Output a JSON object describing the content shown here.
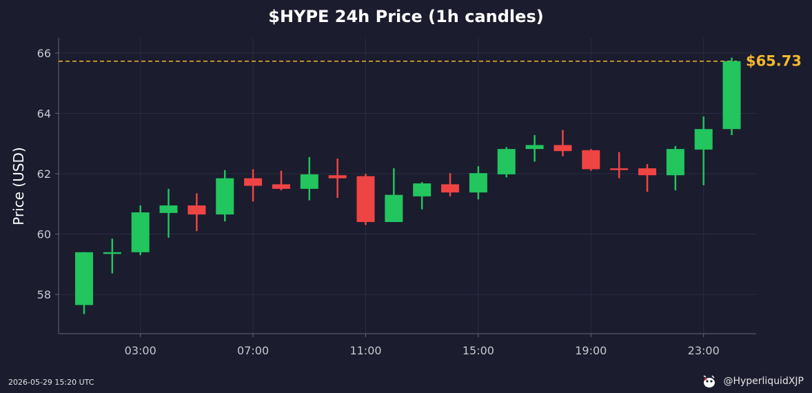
{
  "chart_data": {
    "type": "candlestick",
    "title": "$HYPE 24h Price (1h candles)",
    "ylabel": "Price (USD)",
    "xlabel": "",
    "ylim": [
      56.7,
      66.5
    ],
    "yticks": [
      58,
      60,
      62,
      64,
      66
    ],
    "xticks": [
      "03:00",
      "07:00",
      "11:00",
      "15:00",
      "19:00",
      "23:00"
    ],
    "x": [
      "01:00",
      "02:00",
      "03:00",
      "04:00",
      "05:00",
      "06:00",
      "07:00",
      "08:00",
      "09:00",
      "10:00",
      "11:00",
      "12:00",
      "13:00",
      "14:00",
      "15:00",
      "16:00",
      "17:00",
      "18:00",
      "19:00",
      "20:00",
      "21:00",
      "22:00",
      "23:00",
      "00:00"
    ],
    "open": [
      57.65,
      59.38,
      59.4,
      60.7,
      60.95,
      60.65,
      61.85,
      61.65,
      61.5,
      61.95,
      61.92,
      60.4,
      61.25,
      61.65,
      61.38,
      61.98,
      62.82,
      62.95,
      62.78,
      62.18,
      62.18,
      61.95,
      62.8,
      63.48
    ],
    "high": [
      59.4,
      59.85,
      60.95,
      61.5,
      61.35,
      62.12,
      62.15,
      62.1,
      62.55,
      62.5,
      62.0,
      62.18,
      61.72,
      62.02,
      62.25,
      62.88,
      63.28,
      63.45,
      62.82,
      62.72,
      62.32,
      62.92,
      63.9,
      65.85
    ],
    "low": [
      57.35,
      58.7,
      59.3,
      59.88,
      60.1,
      60.42,
      61.08,
      61.45,
      61.12,
      61.2,
      60.3,
      60.4,
      60.82,
      61.25,
      61.15,
      61.88,
      62.4,
      62.58,
      62.1,
      61.85,
      61.4,
      61.45,
      61.62,
      63.28
    ],
    "close": [
      59.4,
      59.4,
      60.72,
      60.95,
      60.65,
      61.85,
      61.6,
      61.5,
      61.98,
      61.85,
      60.4,
      61.3,
      61.68,
      61.38,
      62.02,
      62.82,
      62.95,
      62.75,
      62.15,
      62.15,
      61.95,
      62.82,
      63.48,
      65.73
    ],
    "current_price": 65.73,
    "current_price_label": "$65.73",
    "grid": true,
    "colors": {
      "up": "#22c55e",
      "down": "#ef4444",
      "price_line": "#f5b82e",
      "grid": "#2a2c42",
      "axis": "#666877",
      "text": "#c8c8d0"
    }
  },
  "footer": {
    "timestamp": "2026-05-29 15:20 UTC",
    "handle": "@HyperliquidXJP",
    "mascot_icon": "mascot-icon"
  }
}
